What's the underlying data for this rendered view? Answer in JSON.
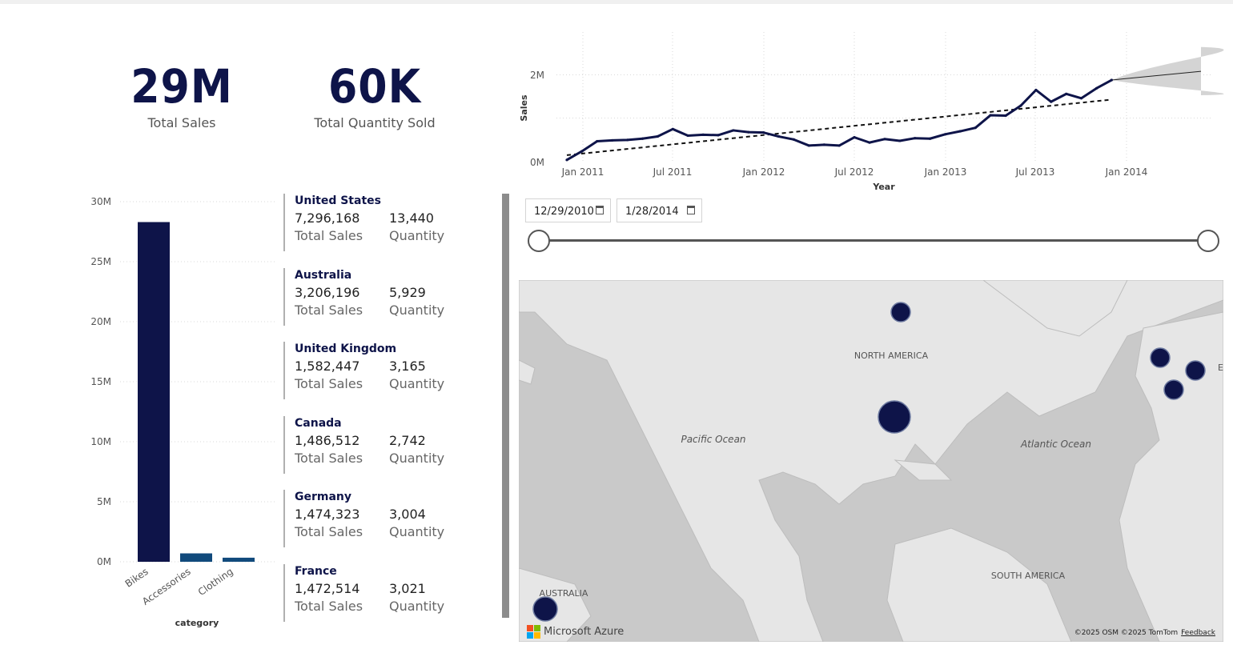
{
  "kpis": {
    "total_sales": {
      "value": "29M",
      "label": "Total Sales"
    },
    "total_quantity": {
      "value": "60K",
      "label": "Total Quantity Sold"
    }
  },
  "line_chart": {
    "ylabel": "Sales",
    "xlabel": "Year",
    "y_ticks": [
      "0M",
      "2M"
    ],
    "x_ticks": [
      "Jan 2011",
      "Jul 2011",
      "Jan 2012",
      "Jul 2012",
      "Jan 2013",
      "Jul 2013",
      "Jan 2014"
    ]
  },
  "bar_chart": {
    "xlabel": "category",
    "y_ticks": [
      "0M",
      "5M",
      "10M",
      "15M",
      "20M",
      "25M",
      "30M"
    ],
    "categories": [
      "Bikes",
      "Accessories",
      "Clothing"
    ]
  },
  "countries": [
    {
      "name": "United States",
      "sales": "7,296,168",
      "sales_label": "Total Sales",
      "quantity": "13,440",
      "quantity_label": "Quantity"
    },
    {
      "name": "Australia",
      "sales": "3,206,196",
      "sales_label": "Total Sales",
      "quantity": "5,929",
      "quantity_label": "Quantity"
    },
    {
      "name": "United Kingdom",
      "sales": "1,582,447",
      "sales_label": "Total Sales",
      "quantity": "3,165",
      "quantity_label": "Quantity"
    },
    {
      "name": "Canada",
      "sales": "1,486,512",
      "sales_label": "Total Sales",
      "quantity": "2,742",
      "quantity_label": "Quantity"
    },
    {
      "name": "Germany",
      "sales": "1,474,323",
      "sales_label": "Total Sales",
      "quantity": "3,004",
      "quantity_label": "Quantity"
    },
    {
      "name": "France",
      "sales": "1,472,514",
      "sales_label": "Total Sales",
      "quantity": "3,021",
      "quantity_label": "Quantity"
    }
  ],
  "date_slicer": {
    "start": "12/29/2010",
    "end": "1/28/2014"
  },
  "map": {
    "labels": {
      "north_america": "NORTH AMERICA",
      "south_america": "SOUTH AMERICA",
      "australia": "AUSTRALIA",
      "pacific": "Pacific Ocean",
      "atlantic": "Atlantic Ocean",
      "europe_cut": "E"
    },
    "brand": "Microsoft Azure",
    "copyright": "©2025 OSM  ©2025 TomTom",
    "feedback": "Feedback"
  },
  "colors": {
    "navy": "#0e1449",
    "blue": "#114a7c",
    "grey": "#8c8c8c"
  },
  "chart_data": [
    {
      "type": "line",
      "ylabel": "Sales",
      "xlabel": "Year",
      "ylim": [
        0,
        2200000
      ],
      "x": [
        "2010-12",
        "2011-01",
        "2011-02",
        "2011-03",
        "2011-04",
        "2011-05",
        "2011-06",
        "2011-07",
        "2011-08",
        "2011-09",
        "2011-10",
        "2011-11",
        "2011-12",
        "2012-01",
        "2012-02",
        "2012-03",
        "2012-04",
        "2012-05",
        "2012-06",
        "2012-07",
        "2012-08",
        "2012-09",
        "2012-10",
        "2012-11",
        "2012-12",
        "2013-01",
        "2013-02",
        "2013-03",
        "2013-04",
        "2013-05",
        "2013-06",
        "2013-07",
        "2013-08",
        "2013-09",
        "2013-10",
        "2013-11",
        "2013-12"
      ],
      "series": [
        {
          "values": [
            40000,
            240000,
            470000,
            490000,
            500000,
            530000,
            580000,
            750000,
            600000,
            620000,
            610000,
            720000,
            680000,
            670000,
            580000,
            510000,
            370000,
            390000,
            370000,
            560000,
            440000,
            520000,
            480000,
            540000,
            530000,
            630000,
            700000,
            780000,
            1070000,
            1060000,
            1290000,
            1650000,
            1380000,
            1560000,
            1460000,
            1690000,
            1880000
          ]
        }
      ],
      "trend": [
        150000,
        1430000
      ],
      "forecast": {
        "start": 1880000,
        "end": 2080000,
        "upper": 2640000,
        "lower": 1530000
      }
    },
    {
      "type": "bar",
      "categories": [
        "Bikes",
        "Accessories",
        "Clothing"
      ],
      "values": [
        28300000,
        700000,
        340000
      ],
      "xlabel": "category",
      "ylim": [
        0,
        30000000
      ]
    }
  ]
}
